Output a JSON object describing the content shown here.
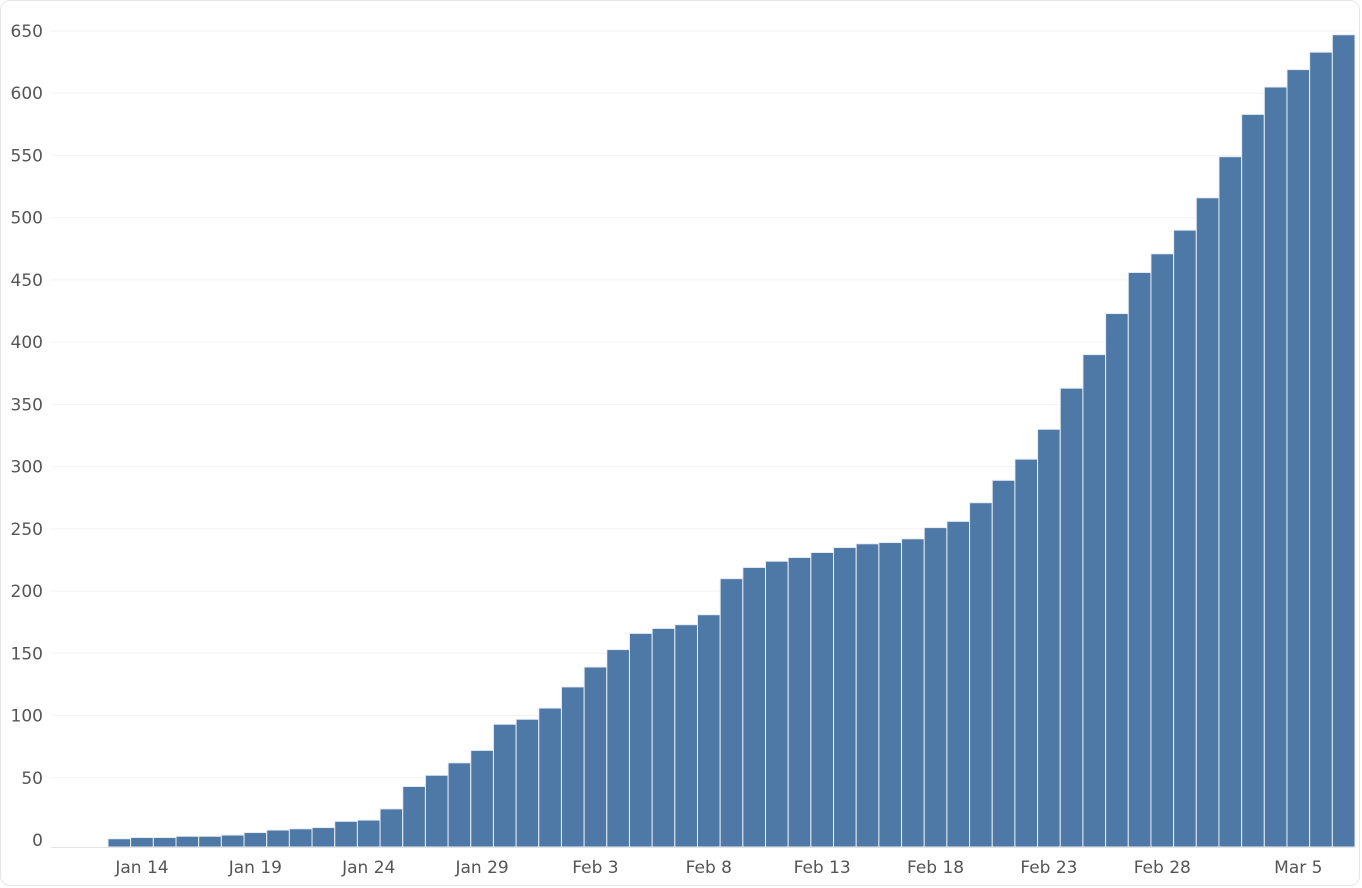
{
  "chart_data": {
    "type": "bar",
    "title": "",
    "xlabel": "",
    "ylabel": "",
    "ylim": [
      0,
      650
    ],
    "yticks": [
      0,
      50,
      100,
      150,
      200,
      250,
      300,
      350,
      400,
      450,
      500,
      550,
      600,
      650
    ],
    "grid": true,
    "categories": [
      "Jan 11",
      "Jan 12",
      "Jan 13",
      "Jan 14",
      "Jan 15",
      "Jan 16",
      "Jan 17",
      "Jan 18",
      "Jan 19",
      "Jan 20",
      "Jan 21",
      "Jan 22",
      "Jan 23",
      "Jan 24",
      "Jan 25",
      "Jan 26",
      "Jan 27",
      "Jan 28",
      "Jan 29",
      "Jan 30",
      "Jan 31",
      "Feb 1",
      "Feb 2",
      "Feb 3",
      "Feb 4",
      "Feb 5",
      "Feb 6",
      "Feb 7",
      "Feb 8",
      "Feb 9",
      "Feb 10",
      "Feb 11",
      "Feb 12",
      "Feb 13",
      "Feb 14",
      "Feb 15",
      "Feb 16",
      "Feb 17",
      "Feb 18",
      "Feb 19",
      "Feb 20",
      "Feb 21",
      "Feb 22",
      "Feb 23",
      "Feb 24",
      "Feb 25",
      "Feb 26",
      "Feb 27",
      "Feb 28",
      "Feb 29",
      "Mar 1",
      "Mar 2",
      "Mar 3",
      "Mar 4",
      "Mar 5",
      "Mar 6",
      "Mar 7"
    ],
    "values": [
      0,
      0,
      1,
      2,
      2,
      3,
      3,
      4,
      6,
      8,
      9,
      10,
      15,
      16,
      25,
      43,
      52,
      62,
      72,
      93,
      97,
      106,
      123,
      139,
      153,
      166,
      170,
      173,
      181,
      210,
      219,
      224,
      227,
      231,
      235,
      238,
      239,
      242,
      251,
      256,
      271,
      289,
      306,
      330,
      363,
      390,
      423,
      456,
      471,
      490,
      516,
      549,
      583,
      605,
      619,
      633,
      647
    ],
    "xtick_labels": [
      "Jan 14",
      "Jan 19",
      "Jan 24",
      "Jan 29",
      "Feb 3",
      "Feb 8",
      "Feb 13",
      "Feb 18",
      "Feb 23",
      "Feb 28",
      "Mar 5"
    ],
    "xtick_categories": [
      "Jan 14",
      "Jan 19",
      "Jan 24",
      "Jan 29",
      "Feb 3",
      "Feb 8",
      "Feb 13",
      "Feb 18",
      "Feb 23",
      "Feb 28",
      "Mar 5"
    ],
    "colors": {
      "bar": "#4e79a7",
      "grid": "#f2f2f2",
      "tick_text": "#555555"
    }
  }
}
